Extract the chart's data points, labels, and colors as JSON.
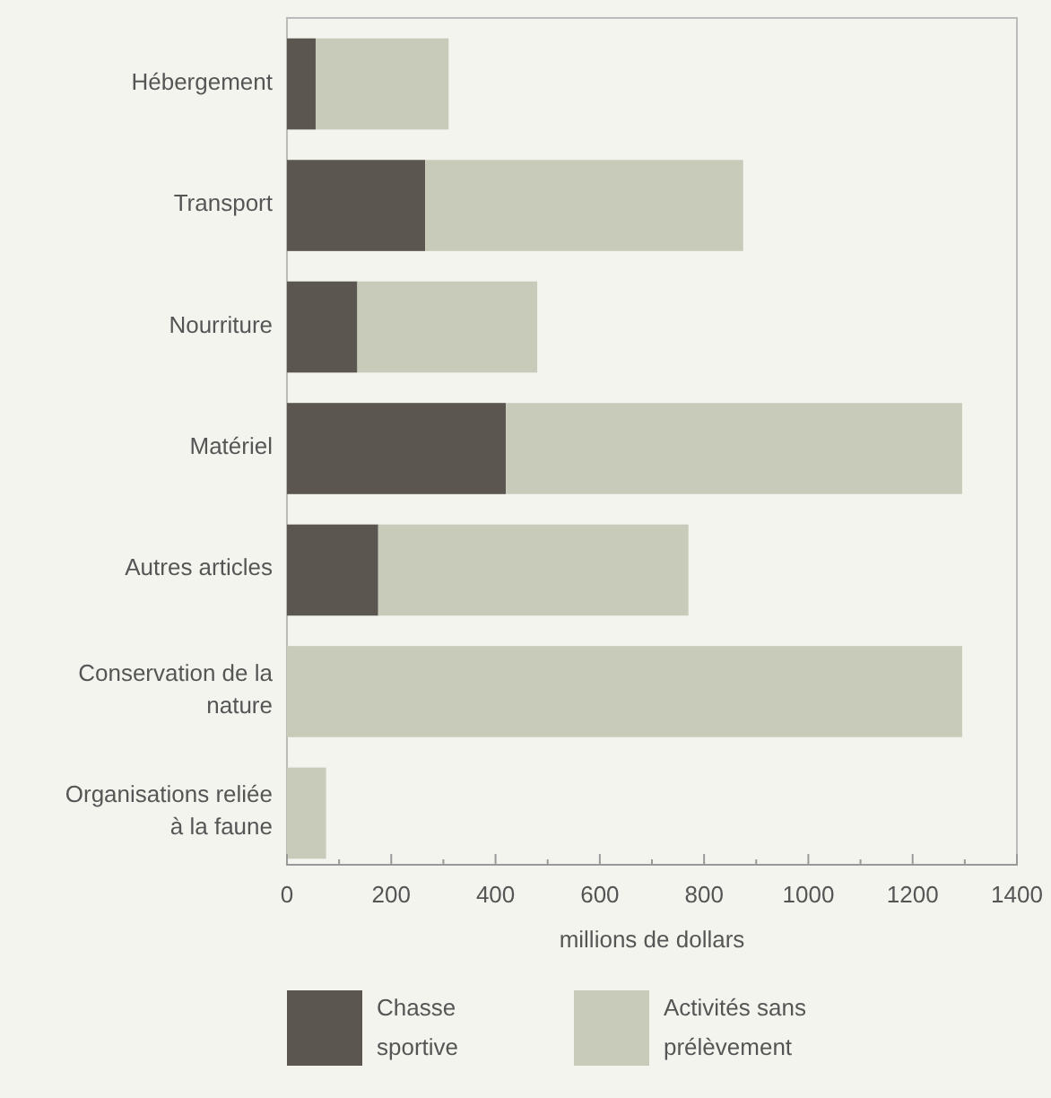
{
  "chart_data": {
    "type": "bar",
    "orientation": "horizontal",
    "stacked": true,
    "categories": [
      "Hébergement",
      "Transport",
      "Nourriture",
      "Matériel",
      "Autres articles",
      "Conservation de la nature",
      "Organisations reliée à la faune"
    ],
    "series": [
      {
        "name": "Chasse sportive",
        "color": "#5b5750",
        "values": [
          55,
          265,
          135,
          420,
          175,
          0,
          0
        ]
      },
      {
        "name": "Activités sans prélèvement",
        "color": "#c9cbba",
        "values": [
          255,
          610,
          345,
          875,
          595,
          1295,
          75
        ]
      }
    ],
    "xlabel": "millions de dollars",
    "xlim": [
      0,
      1400
    ],
    "xticks": [
      0,
      {
        "value": 100,
        "label": null
      },
      200,
      {
        "value": 300,
        "label": null
      },
      400,
      {
        "value": 500,
        "label": null
      },
      600,
      {
        "value": 700,
        "label": null
      },
      800,
      {
        "value": 900,
        "label": null
      },
      1000,
      {
        "value": 1100,
        "label": null
      },
      1200,
      {
        "value": 1300,
        "label": null
      },
      1400
    ],
    "grid": false,
    "legend": "bottom"
  }
}
